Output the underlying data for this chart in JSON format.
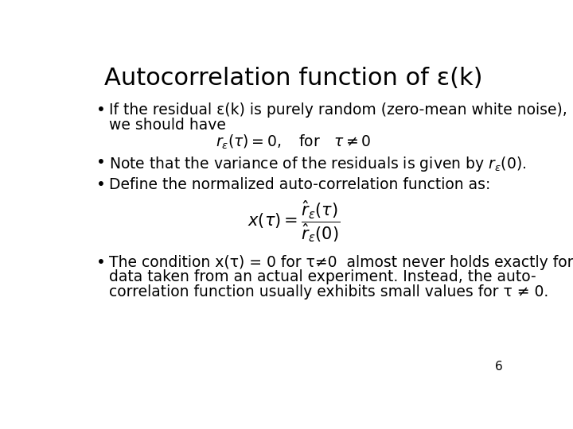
{
  "title": "Autocorrelation function of ε(k)",
  "title_fontsize": 22,
  "background_color": "#ffffff",
  "text_color": "#000000",
  "bullet1_line1": "If the residual ε(k) is purely random (zero-mean white noise),",
  "bullet1_line2": "we should have",
  "formula1": "$r_{\\varepsilon}(\\tau) = 0, \\quad \\mathrm{for} \\quad \\tau \\neq 0$",
  "bullet2": "Note that the variance of the residuals is given by $r_{\\varepsilon}(0)$.",
  "bullet3": "Define the normalized auto-correlation function as:",
  "formula2": "$x(\\tau) = \\dfrac{\\hat{r}_{\\varepsilon}(\\tau)}{\\hat{r}_{\\varepsilon}(0)}$",
  "bullet4_line1": "The condition x(τ) = 0 for τ≠0  almost never holds exactly for",
  "bullet4_line2": "data taken from an actual experiment. Instead, the auto-",
  "bullet4_line3": "correlation function usually exhibits small values for τ ≠ 0.",
  "page_number": "6",
  "body_fontsize": 13.5,
  "formula1_fontsize": 13.5,
  "formula2_fontsize": 15
}
